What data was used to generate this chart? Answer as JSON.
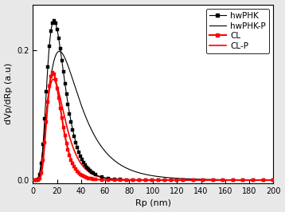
{
  "title": "",
  "xlabel": "Rp (nm)",
  "ylabel": "dVp/dRp (a.u)",
  "xlim": [
    0,
    200
  ],
  "ylim": [
    -0.005,
    0.27
  ],
  "yticks": [
    0.0,
    0.2
  ],
  "xticks": [
    0,
    20,
    40,
    60,
    80,
    100,
    120,
    140,
    160,
    180,
    200
  ],
  "series": [
    {
      "label": "hwPHK",
      "color": "black",
      "linestyle": "solid",
      "marker": "s",
      "markersize": 2.8,
      "linewidth": 0.8,
      "peak": 17.5,
      "amplitude": 0.245,
      "sigma": 0.42,
      "zorder": 4
    },
    {
      "label": "hwPHK-P",
      "color": "black",
      "linestyle": "solid",
      "marker": "none",
      "linewidth": 0.8,
      "peak": 22,
      "amplitude": 0.198,
      "sigma": 0.58,
      "zorder": 3
    },
    {
      "label": "CL",
      "color": "red",
      "linestyle": "solid",
      "marker": "s",
      "markersize": 2.8,
      "linewidth": 1.5,
      "peak": 16.5,
      "amplitude": 0.165,
      "sigma": 0.36,
      "zorder": 5
    },
    {
      "label": "CL-P",
      "color": "red",
      "linestyle": "solid",
      "marker": "none",
      "linewidth": 1.2,
      "peak": 17.0,
      "amplitude": 0.155,
      "sigma": 0.45,
      "zorder": 2
    }
  ],
  "legend_fontsize": 7.5,
  "axis_fontsize": 8,
  "tick_fontsize": 7,
  "background_color": "#ffffff",
  "figure_facecolor": "#e8e8e8"
}
